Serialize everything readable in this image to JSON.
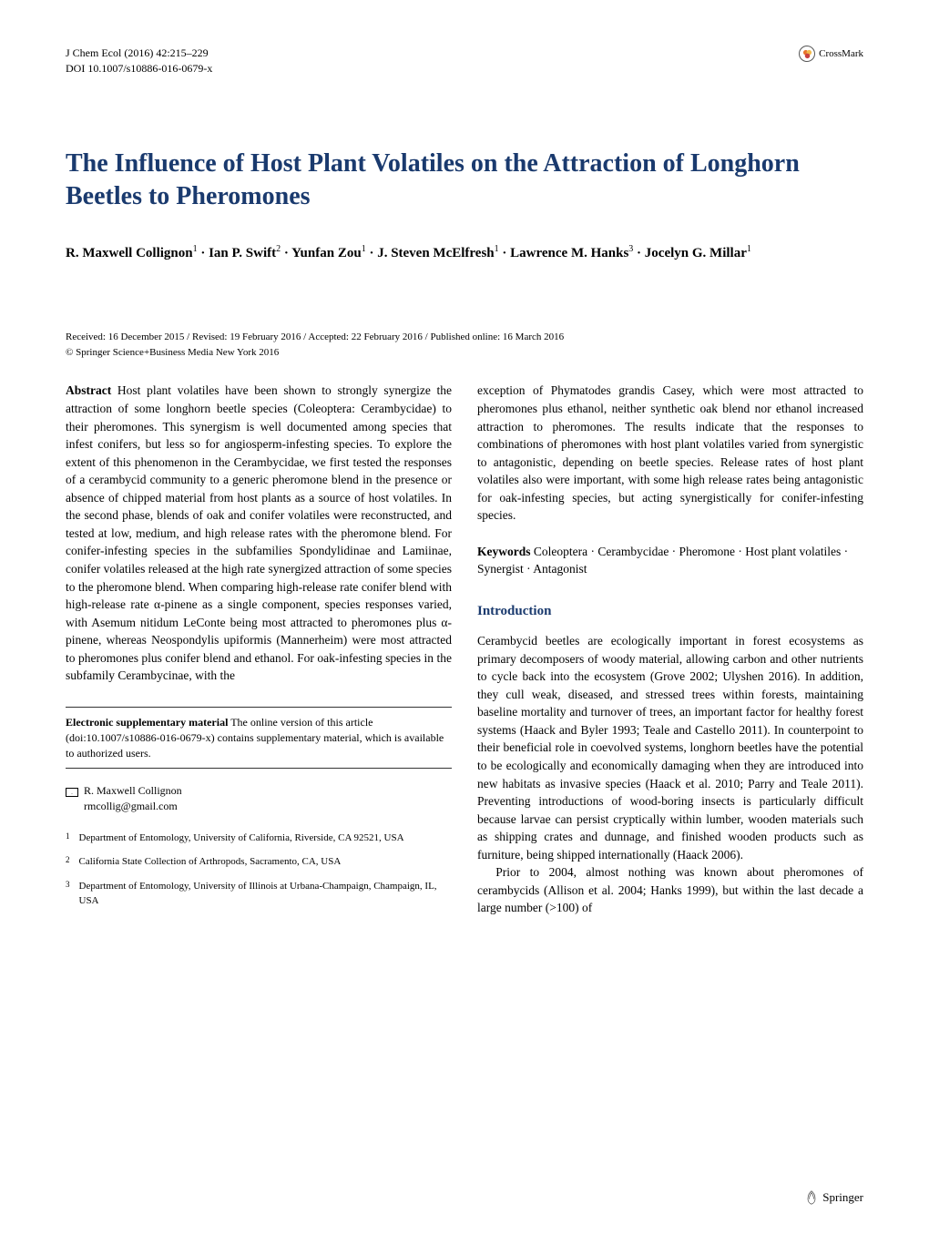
{
  "header": {
    "journal_line": "J Chem Ecol (2016) 42:215–229",
    "doi_line": "DOI 10.1007/s10886-016-0679-x",
    "crossmark_label": "CrossMark"
  },
  "title": "The Influence of Host Plant Volatiles on the Attraction of Longhorn Beetles to Pheromones",
  "authors_html": "R. Maxwell Collignon<sup>1</sup> · Ian P. Swift<sup>2</sup> · Yunfan Zou<sup>1</sup> · J. Steven McElfresh<sup>1</sup> · Lawrence M. Hanks<sup>3</sup> · Jocelyn G. Millar<sup>1</sup>",
  "dates": {
    "line1": "Received: 16 December 2015 / Revised: 19 February 2016 / Accepted: 22 February 2016 / Published online: 16 March 2016",
    "line2": "© Springer Science+Business Media New York 2016"
  },
  "abstract": {
    "label": "Abstract",
    "text_left": " Host plant volatiles have been shown to strongly synergize the attraction of some longhorn beetle species (Coleoptera: Cerambycidae) to their pheromones. This synergism is well documented among species that infest conifers, but less so for angiosperm-infesting species. To explore the extent of this phenomenon in the Cerambycidae, we first tested the responses of a cerambycid community to a generic pheromone blend in the presence or absence of chipped material from host plants as a source of host volatiles. In the second phase, blends of oak and conifer volatiles were reconstructed, and tested at low, medium, and high release rates with the pheromone blend. For conifer-infesting species in the subfamilies Spondylidinae and Lamiinae, conifer volatiles released at the high rate synergized attraction of some species to the pheromone blend. When comparing high-release rate conifer blend with high-release rate α-pinene as a single component, species responses varied, with Asemum nitidum LeConte being most attracted to pheromones plus α-pinene, whereas Neospondylis upiformis (Mannerheim) were most attracted to pheromones plus conifer blend and ethanol. For oak-infesting species in the subfamily Cerambycinae, with the",
    "text_right": "exception of Phymatodes grandis Casey, which were most attracted to pheromones plus ethanol, neither synthetic oak blend nor ethanol increased attraction to pheromones. The results indicate that the responses to combinations of pheromones with host plant volatiles varied from synergistic to antagonistic, depending on beetle species. Release rates of host plant volatiles also were important, with some high release rates being antagonistic for oak-infesting species, but acting synergistically for conifer-infesting species."
  },
  "keywords": {
    "label": "Keywords",
    "text": " Coleoptera · Cerambycidae · Pheromone · Host plant volatiles · Synergist · Antagonist"
  },
  "intro": {
    "heading": "Introduction",
    "p1": "Cerambycid beetles are ecologically important in forest ecosystems as primary decomposers of woody material, allowing carbon and other nutrients to cycle back into the ecosystem (Grove 2002; Ulyshen 2016). In addition, they cull weak, diseased, and stressed trees within forests, maintaining baseline mortality and turnover of trees, an important factor for healthy forest systems (Haack and Byler 1993; Teale and Castello 2011). In counterpoint to their beneficial role in coevolved systems, longhorn beetles have the potential to be ecologically and economically damaging when they are introduced into new habitats as invasive species (Haack et al. 2010; Parry and Teale 2011). Preventing introductions of wood-boring insects is particularly difficult because larvae can persist cryptically within lumber, wooden materials such as shipping crates and dunnage, and finished wooden products such as furniture, being shipped internationally (Haack 2006).",
    "p2": "Prior to 2004, almost nothing was known about pheromones of cerambycids (Allison et al. 2004; Hanks 1999), but within the last decade a large number (>100) of"
  },
  "supplementary": {
    "label": "Electronic supplementary material",
    "text": " The online version of this article (doi:10.1007/s10886-016-0679-x) contains supplementary material, which is available to authorized users."
  },
  "corresponding": {
    "name": "R. Maxwell Collignon",
    "email": "rmcollig@gmail.com"
  },
  "affiliations": [
    {
      "num": "1",
      "text": "Department of Entomology, University of California, Riverside, CA 92521, USA"
    },
    {
      "num": "2",
      "text": "California State Collection of Arthropods, Sacramento, CA, USA"
    },
    {
      "num": "3",
      "text": "Department of Entomology, University of Illinois at Urbana-Champaign, Champaign, IL, USA"
    }
  ],
  "footer": {
    "publisher": "Springer"
  },
  "colors": {
    "heading_blue": "#1a3a6e",
    "crossmark_orange": "#e8742c",
    "crossmark_red": "#c94141",
    "crossmark_yellow": "#f2b94a"
  }
}
